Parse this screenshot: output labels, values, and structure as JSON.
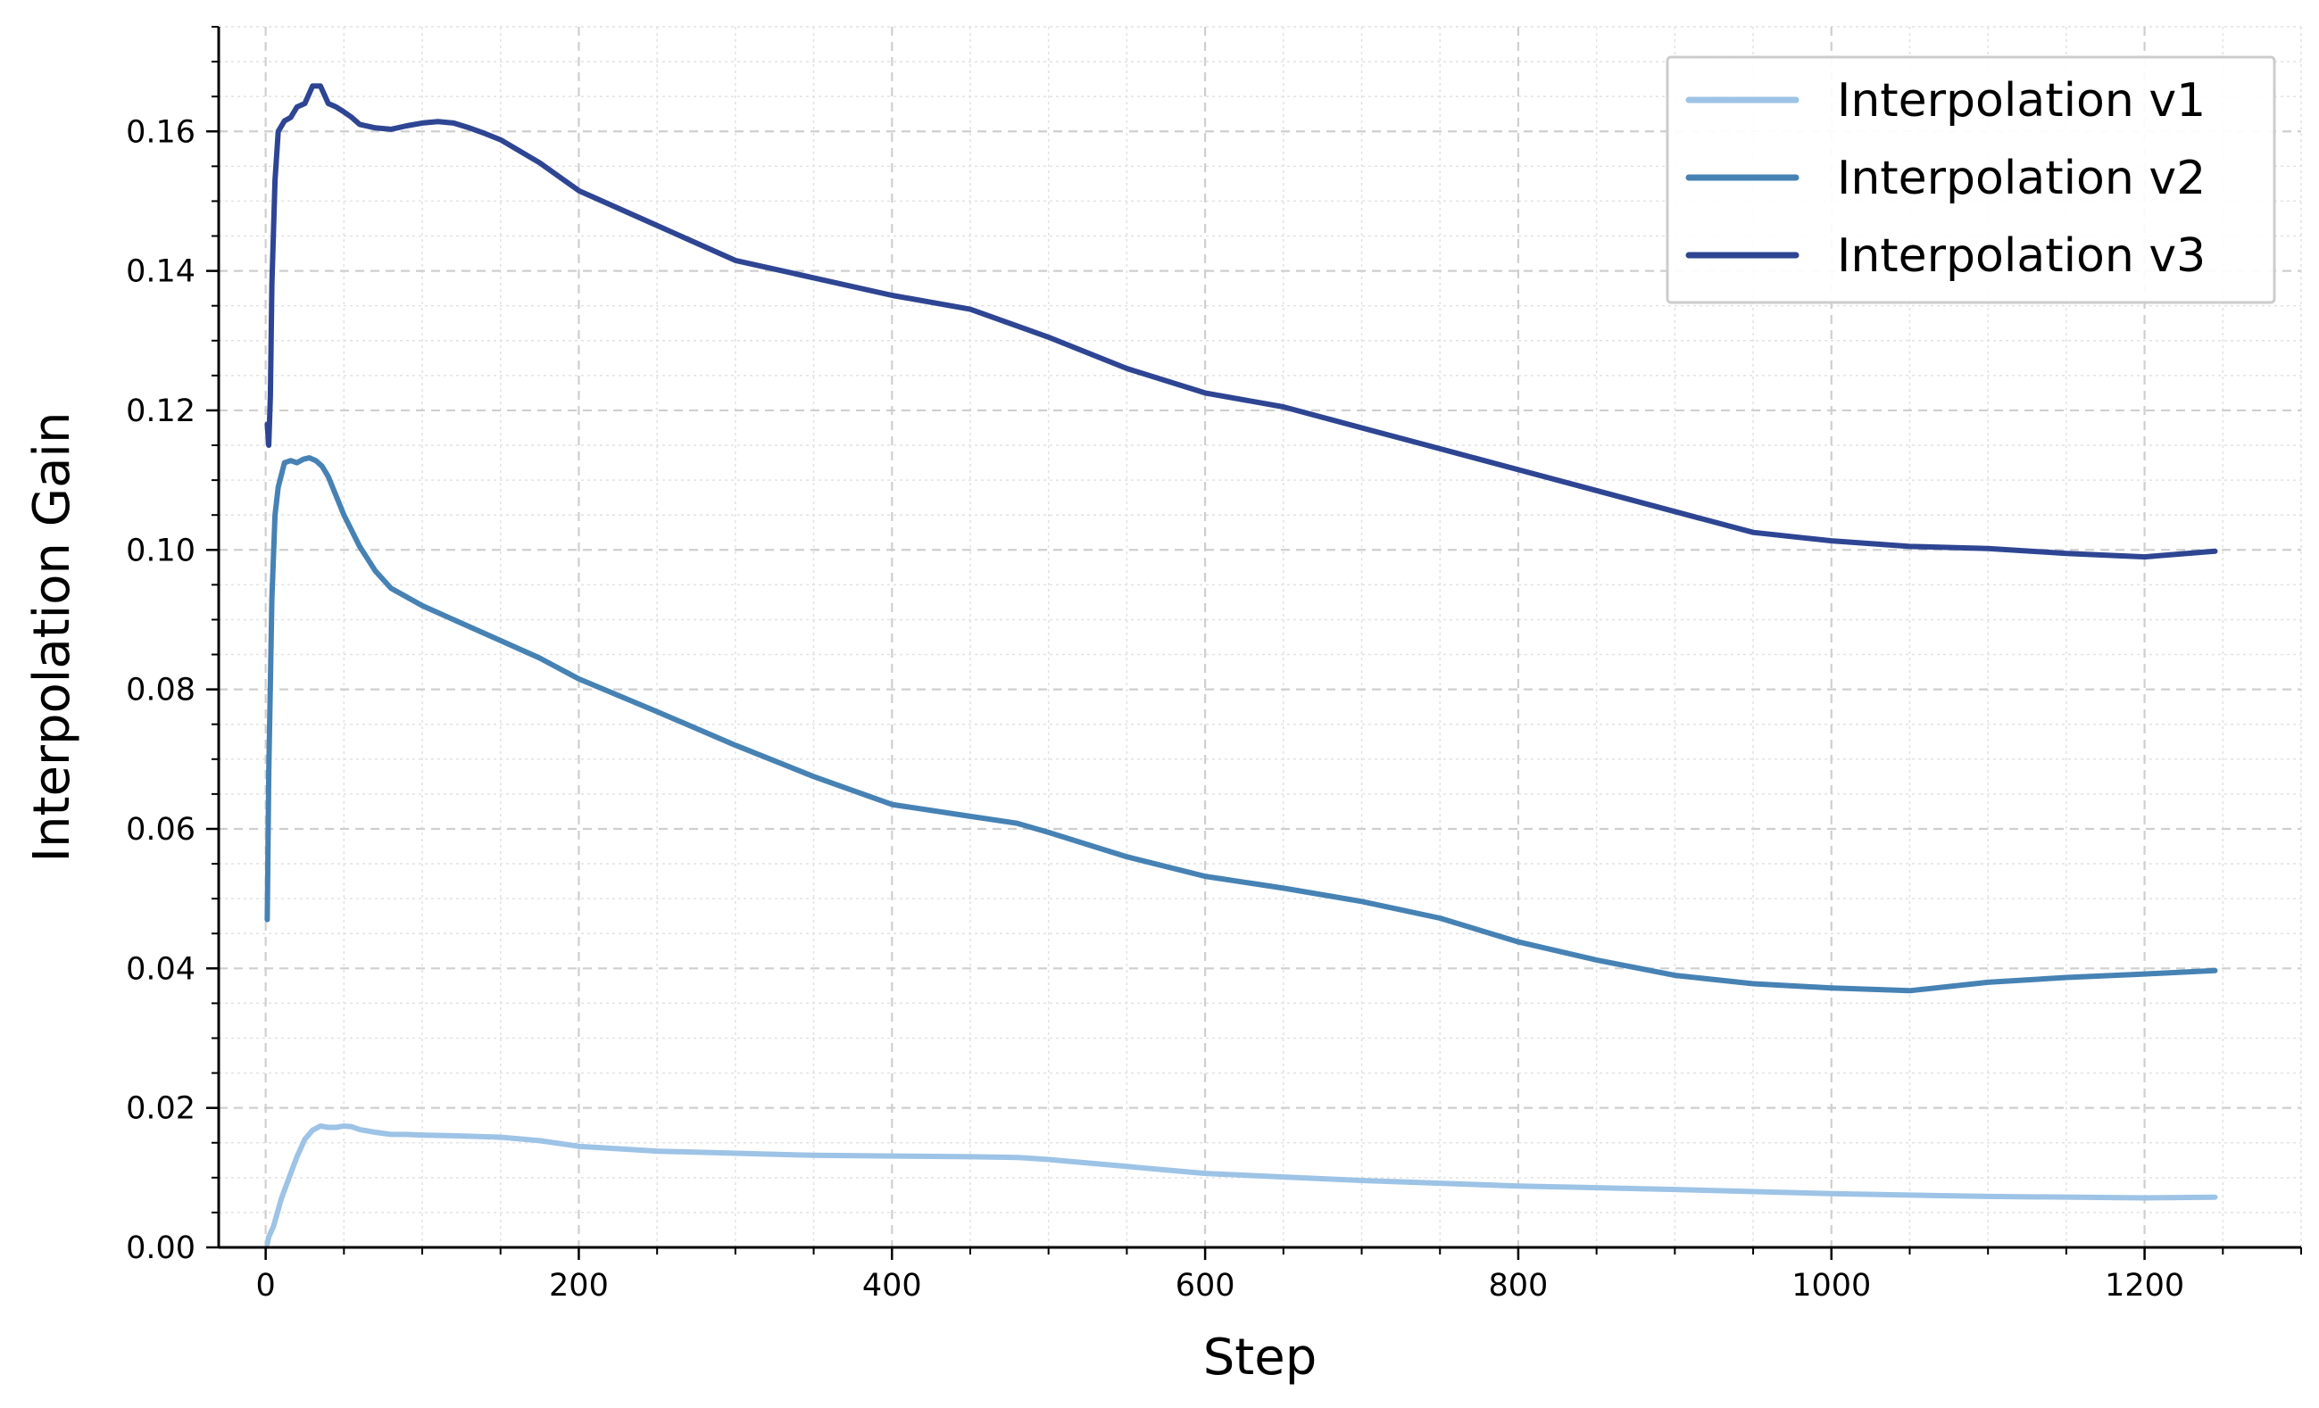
{
  "chart_data": {
    "type": "line",
    "title": "",
    "xlabel": "Step",
    "ylabel": "Interpolation Gain",
    "xlim": [
      -30,
      1300
    ],
    "ylim": [
      0,
      0.175
    ],
    "xticks": [
      0,
      200,
      400,
      600,
      800,
      1000,
      1200
    ],
    "xtick_labels": [
      "0",
      "200",
      "400",
      "600",
      "800",
      "1000",
      "1200"
    ],
    "yticks": [
      0.0,
      0.02,
      0.04,
      0.06,
      0.08,
      0.1,
      0.12,
      0.14,
      0.16
    ],
    "ytick_labels": [
      "0.00",
      "0.02",
      "0.04",
      "0.06",
      "0.08",
      "0.10",
      "0.12",
      "0.14",
      "0.16"
    ],
    "grid": {
      "major": true,
      "minor": true
    },
    "legend_position": "top-right",
    "series": [
      {
        "name": "Interpolation v1",
        "color": "#9dc3e6",
        "x": [
          1,
          2,
          5,
          10,
          15,
          20,
          25,
          30,
          35,
          40,
          45,
          50,
          55,
          60,
          70,
          80,
          90,
          100,
          120,
          150,
          175,
          200,
          250,
          300,
          350,
          400,
          450,
          480,
          500,
          550,
          600,
          700,
          800,
          900,
          1000,
          1100,
          1200,
          1245
        ],
        "y": [
          0.0005,
          0.0015,
          0.003,
          0.007,
          0.01,
          0.013,
          0.0155,
          0.0168,
          0.0174,
          0.0172,
          0.0172,
          0.0174,
          0.0173,
          0.0169,
          0.0165,
          0.0162,
          0.0162,
          0.0161,
          0.016,
          0.0158,
          0.0153,
          0.0145,
          0.0138,
          0.0135,
          0.0132,
          0.0131,
          0.013,
          0.0129,
          0.0126,
          0.0116,
          0.0106,
          0.0096,
          0.0088,
          0.0083,
          0.0077,
          0.0073,
          0.0071,
          0.0072
        ]
      },
      {
        "name": "Interpolation v2",
        "color": "#4682b4",
        "x": [
          1,
          2,
          4,
          6,
          8,
          12,
          16,
          20,
          24,
          28,
          32,
          36,
          40,
          50,
          60,
          70,
          80,
          100,
          125,
          150,
          175,
          200,
          250,
          300,
          350,
          400,
          450,
          480,
          500,
          550,
          600,
          650,
          700,
          750,
          800,
          850,
          900,
          950,
          1000,
          1050,
          1100,
          1150,
          1200,
          1245
        ],
        "y": [
          0.047,
          0.068,
          0.093,
          0.105,
          0.109,
          0.1125,
          0.1128,
          0.1125,
          0.113,
          0.1132,
          0.1128,
          0.112,
          0.1105,
          0.105,
          0.1005,
          0.097,
          0.0945,
          0.092,
          0.0895,
          0.087,
          0.0845,
          0.0815,
          0.0768,
          0.072,
          0.0675,
          0.0635,
          0.0618,
          0.0608,
          0.0595,
          0.056,
          0.0532,
          0.0515,
          0.0496,
          0.0472,
          0.0438,
          0.0412,
          0.039,
          0.0378,
          0.0372,
          0.0368,
          0.038,
          0.0387,
          0.0392,
          0.0397
        ]
      },
      {
        "name": "Interpolation v3",
        "color": "#2e4593",
        "x": [
          1,
          2,
          3,
          4,
          6,
          8,
          12,
          16,
          20,
          25,
          30,
          35,
          40,
          45,
          50,
          55,
          60,
          70,
          80,
          90,
          100,
          110,
          120,
          130,
          140,
          150,
          175,
          200,
          250,
          300,
          350,
          400,
          450,
          500,
          550,
          600,
          650,
          700,
          750,
          800,
          850,
          900,
          950,
          1000,
          1050,
          1100,
          1150,
          1200,
          1245
        ],
        "y": [
          0.118,
          0.115,
          0.122,
          0.138,
          0.153,
          0.16,
          0.1615,
          0.162,
          0.1635,
          0.164,
          0.1665,
          0.1665,
          0.164,
          0.1635,
          0.1628,
          0.162,
          0.161,
          0.1605,
          0.1603,
          0.1608,
          0.1612,
          0.1614,
          0.1612,
          0.1605,
          0.1597,
          0.1588,
          0.1555,
          0.1515,
          0.1465,
          0.1415,
          0.139,
          0.1365,
          0.1345,
          0.1305,
          0.126,
          0.1225,
          0.1205,
          0.1175,
          0.1145,
          0.1115,
          0.1085,
          0.1055,
          0.1025,
          0.1013,
          0.1005,
          0.1002,
          0.0995,
          0.099,
          0.0998
        ]
      }
    ]
  }
}
